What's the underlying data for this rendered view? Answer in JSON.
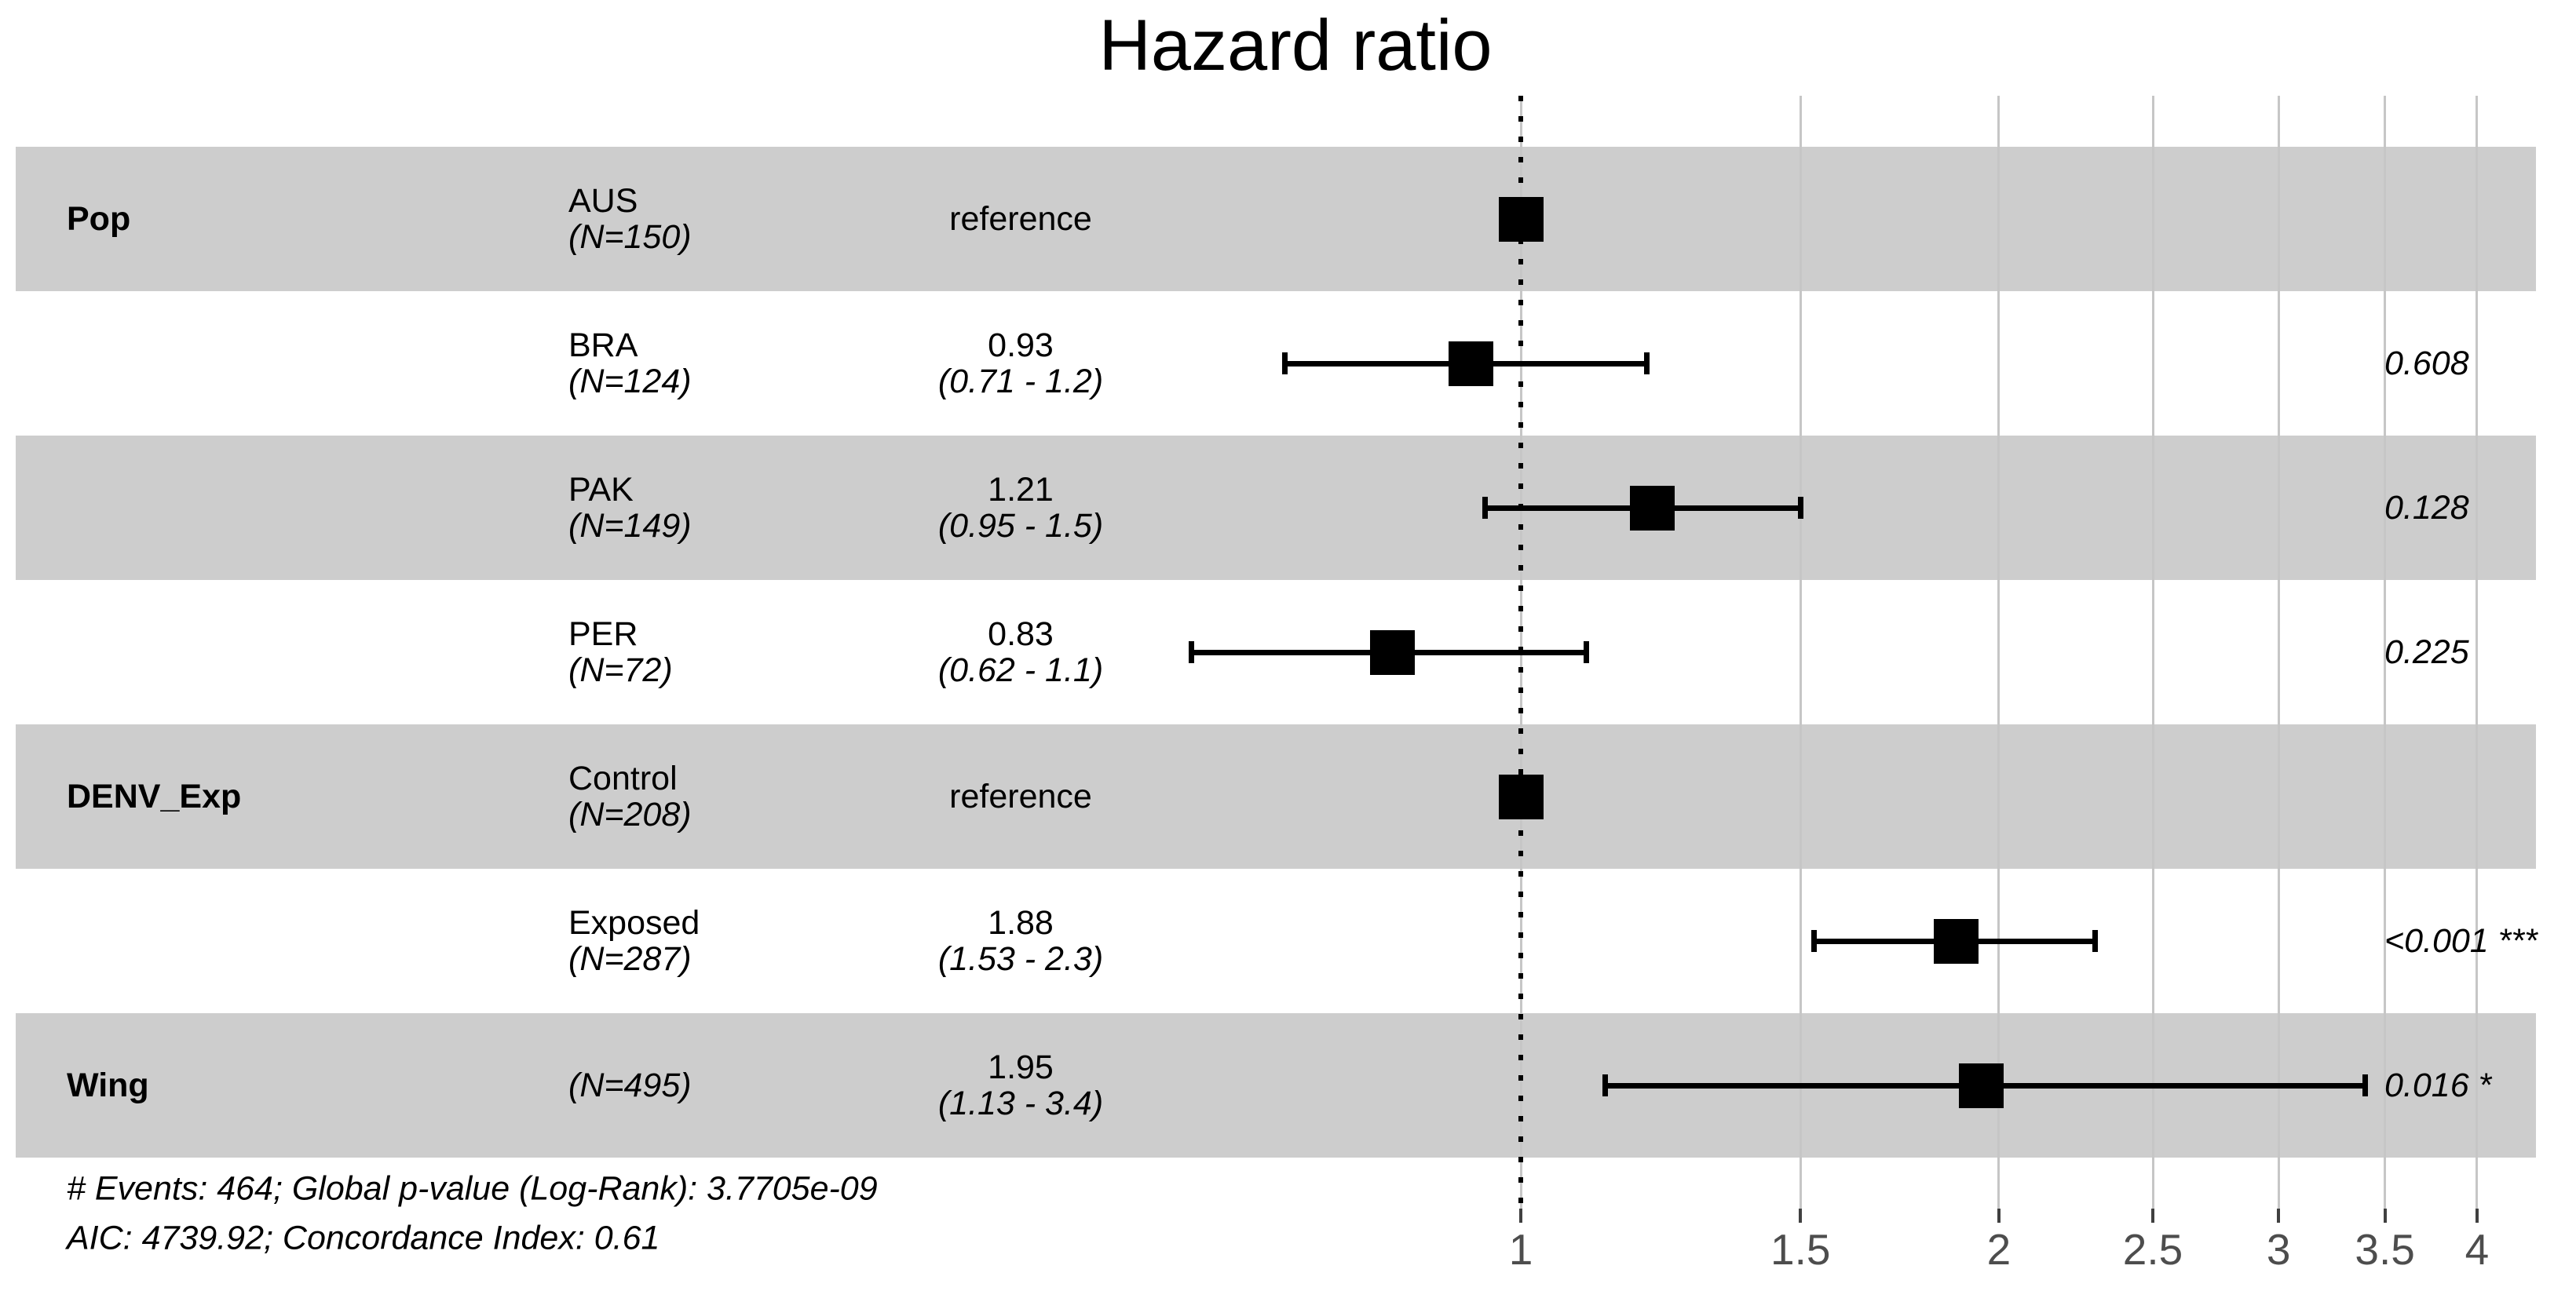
{
  "title": "Hazard ratio",
  "chart_data": {
    "type": "scatter",
    "subtype": "forest-plot",
    "title": "Hazard ratio",
    "x_scale": "log",
    "x_ticks": [
      1,
      1.5,
      2,
      2.5,
      3,
      3.5,
      4
    ],
    "xlim": [
      0.58,
      4.15
    ],
    "reference_line": 1,
    "grid": "vertical-major-only",
    "rows": [
      {
        "variable": "Pop",
        "level": "AUS",
        "n_label": "(N=150)",
        "estimate_label": "reference",
        "ci_label": "",
        "hr": 1.0,
        "ci_low": null,
        "ci_high": null,
        "p_label": "",
        "shaded": true,
        "is_reference": true
      },
      {
        "variable": "",
        "level": "BRA",
        "n_label": "(N=124)",
        "estimate_label": "0.93",
        "ci_label": "(0.71 - 1.2)",
        "hr": 0.93,
        "ci_low": 0.71,
        "ci_high": 1.2,
        "p_label": "0.608",
        "shaded": false,
        "is_reference": false
      },
      {
        "variable": "",
        "level": "PAK",
        "n_label": "(N=149)",
        "estimate_label": "1.21",
        "ci_label": "(0.95 - 1.5)",
        "hr": 1.21,
        "ci_low": 0.95,
        "ci_high": 1.5,
        "p_label": "0.128",
        "shaded": true,
        "is_reference": false
      },
      {
        "variable": "",
        "level": "PER",
        "n_label": "(N=72)",
        "estimate_label": "0.83",
        "ci_label": "(0.62 - 1.1)",
        "hr": 0.83,
        "ci_low": 0.62,
        "ci_high": 1.1,
        "p_label": "0.225",
        "shaded": false,
        "is_reference": false
      },
      {
        "variable": "DENV_Exp",
        "level": "Control",
        "n_label": "(N=208)",
        "estimate_label": "reference",
        "ci_label": "",
        "hr": 1.0,
        "ci_low": null,
        "ci_high": null,
        "p_label": "",
        "shaded": true,
        "is_reference": true
      },
      {
        "variable": "",
        "level": "Exposed",
        "n_label": "(N=287)",
        "estimate_label": "1.88",
        "ci_label": "(1.53 - 2.3)",
        "hr": 1.88,
        "ci_low": 1.53,
        "ci_high": 2.3,
        "p_label": "<0.001 ***",
        "shaded": false,
        "is_reference": false
      },
      {
        "variable": "Wing",
        "level": "",
        "n_label": "(N=495)",
        "estimate_label": "1.95",
        "ci_label": "(1.13 - 3.4)",
        "hr": 1.95,
        "ci_low": 1.13,
        "ci_high": 3.4,
        "p_label": "0.016 *",
        "shaded": true,
        "is_reference": false
      }
    ],
    "footnotes": [
      "# Events: 464; Global p-value (Log-Rank): 3.7705e-09",
      "AIC: 4739.92; Concordance Index: 0.61"
    ]
  },
  "colors": {
    "background": "#ffffff",
    "band": "#cdcdcd",
    "grid": "#c6c6c6",
    "tick": "#404040",
    "axis_text": "#4d4d4d",
    "marker": "#000000",
    "text": "#000000"
  }
}
